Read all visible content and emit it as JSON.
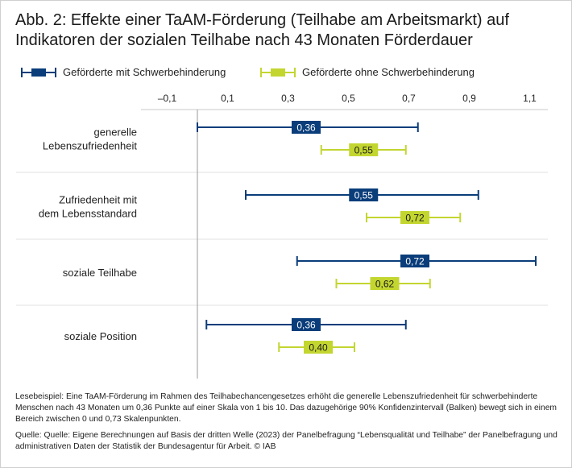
{
  "title": "Abb. 2: Effekte einer TaAM-Förderung (Teilhabe am Arbeitsmarkt) auf Indikatoren der sozialen Teilhabe nach 43 Monaten Förderdauer",
  "colors": {
    "series1": "#0a3d7a",
    "series2": "#c3d630",
    "zero_line": "#9a9a9a",
    "grid": "#c8c8c8",
    "label_text_light": "#ffffff",
    "label_text_dark": "#1a1a1a"
  },
  "footnotes": {
    "lesebeispiel": "Lesebeispiel: Eine TaAM-Förderung im Rahmen des Teilhabechancengesetzes erhöht die generelle Lebenszufriedenheit für schwerbehinderte Menschen nach 43 Monaten um 0,36 Punkte auf einer Skala von 1 bis 10. Das dazugehörige 90% Konfidenzintervall (Balken) bewegt sich in einem Bereich zwischen 0 und 0,73 Skalenpunkten.",
    "quelle": "Quelle: Quelle: Eigene Berechnungen auf Basis der dritten Welle (2023) der Panelbefragung “Lebensqualität und Teilhabe” der Panelbefragung und administrativen Daten der Statistik der Bundesagentur für Arbeit. © IAB"
  },
  "chart_data": {
    "type": "forest",
    "xlim": [
      -0.16,
      1.16
    ],
    "x_ticks": [
      -0.1,
      0.1,
      0.3,
      0.5,
      0.7,
      0.9,
      1.1
    ],
    "x_tick_labels": [
      "–0,1",
      "0,1",
      "0,3",
      "0,5",
      "0,7",
      "0,9",
      "1,1"
    ],
    "zero_line": 0,
    "categories": [
      [
        "generelle",
        "Lebenszufriedenheit"
      ],
      [
        "Zufriedenheit mit",
        "dem Lebensstandard"
      ],
      [
        "soziale Teilhabe"
      ],
      [
        "soziale Position"
      ]
    ],
    "series": [
      {
        "name": "Geförderte mit Schwerbehinderung",
        "points": [
          {
            "value": 0.36,
            "label": "0,36",
            "ci": [
              0.0,
              0.73
            ]
          },
          {
            "value": 0.55,
            "label": "0,55",
            "ci": [
              0.16,
              0.93
            ]
          },
          {
            "value": 0.72,
            "label": "0,72",
            "ci": [
              0.33,
              1.12
            ]
          },
          {
            "value": 0.36,
            "label": "0,36",
            "ci": [
              0.03,
              0.69
            ]
          }
        ]
      },
      {
        "name": "Geförderte ohne Schwerbehinderung",
        "points": [
          {
            "value": 0.55,
            "label": "0,55",
            "ci": [
              0.41,
              0.69
            ]
          },
          {
            "value": 0.72,
            "label": "0,72",
            "ci": [
              0.56,
              0.87
            ]
          },
          {
            "value": 0.62,
            "label": "0,62",
            "ci": [
              0.46,
              0.77
            ]
          },
          {
            "value": 0.4,
            "label": "0,40",
            "ci": [
              0.27,
              0.52
            ]
          }
        ]
      }
    ]
  }
}
